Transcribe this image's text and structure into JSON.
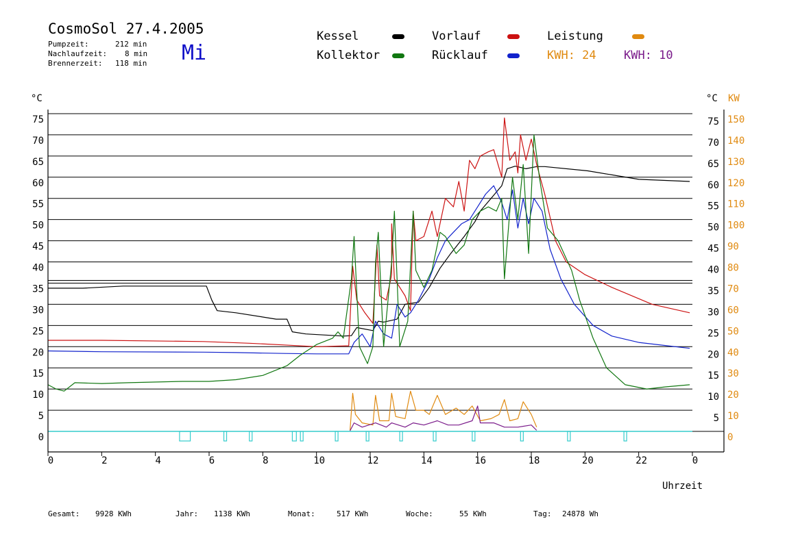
{
  "header": {
    "title": "CosmoSol 27.4.2005",
    "weekday": "Mi",
    "stats": [
      {
        "label": "Pumpzeit:",
        "value": "212 min"
      },
      {
        "label": "Nachlaufzeit:",
        "value": "8 min"
      },
      {
        "label": "Brennerzeit:",
        "value": "118 min"
      }
    ]
  },
  "legend": {
    "kessel": "Kessel",
    "kollektor": "Kollektor",
    "vorlauf": "Vorlauf",
    "ruecklauf": "Rücklauf",
    "leistung": "Leistung",
    "kwh_orange": "KWH: 24",
    "kwh_purple": "KWH: 10"
  },
  "colors": {
    "kessel": "#000000",
    "kollektor": "#117711",
    "vorlauf": "#cc1111",
    "ruecklauf": "#1122cc",
    "leistung": "#e08a10",
    "purple": "#7a1a8a",
    "pump": "#33cccc",
    "day": "#1010c8"
  },
  "footer": [
    {
      "label": "Gesamt:",
      "value": "9928 KWh"
    },
    {
      "label": "Jahr:",
      "value": "1138 KWh"
    },
    {
      "label": "Monat:",
      "value": "517 KWh"
    },
    {
      "label": "Woche:",
      "value": "55 KWh"
    },
    {
      "label": "Tag:",
      "value": "24878 Wh"
    }
  ],
  "chart_data": {
    "type": "line",
    "xlabel": "Uhrzeit",
    "ylabel_left": "°C",
    "ylabel_right_temp": "°C",
    "ylabel_right_power": "KW",
    "xlim": [
      0,
      24
    ],
    "ylim": [
      0,
      75
    ],
    "ylim_power": [
      0,
      150
    ],
    "x_ticks": [
      "0",
      "2",
      "4",
      "6",
      "8",
      "10",
      "12",
      "14",
      "16",
      "18",
      "20",
      "22",
      "0"
    ],
    "y_ticks_left": [
      "0",
      "5",
      "10",
      "15",
      "20",
      "25",
      "30",
      "35",
      "40",
      "45",
      "50",
      "55",
      "60",
      "65",
      "70",
      "75"
    ],
    "y_ticks_right_temp": [
      "5",
      "10",
      "15",
      "20",
      "25",
      "30",
      "35",
      "40",
      "45",
      "50",
      "55",
      "60",
      "65",
      "70",
      "75"
    ],
    "y_ticks_right_power": [
      "0",
      "10",
      "20",
      "30",
      "40",
      "50",
      "60",
      "70",
      "80",
      "90",
      "100",
      "110",
      "120",
      "130",
      "140",
      "150"
    ],
    "grid": true,
    "series": [
      {
        "name": "Kessel",
        "color": "#000000",
        "points": [
          [
            0,
            33.8
          ],
          [
            1.3,
            33.8
          ],
          [
            2.8,
            34.3
          ],
          [
            5.9,
            34.3
          ],
          [
            6.1,
            31
          ],
          [
            6.3,
            28.5
          ],
          [
            7,
            28
          ],
          [
            8.5,
            26.5
          ],
          [
            8.9,
            26.5
          ],
          [
            9.1,
            23.5
          ],
          [
            9.6,
            23
          ],
          [
            11,
            22.5
          ],
          [
            11.3,
            22.6
          ],
          [
            11.5,
            24.5
          ],
          [
            12.1,
            23.8
          ],
          [
            12.3,
            26
          ],
          [
            12.5,
            25.8
          ],
          [
            13,
            26.5
          ],
          [
            13.3,
            30
          ],
          [
            13.8,
            30.5
          ],
          [
            14.2,
            34
          ],
          [
            14.6,
            38.5
          ],
          [
            15,
            42
          ],
          [
            15.5,
            46
          ],
          [
            15.9,
            49.5
          ],
          [
            16.1,
            52
          ],
          [
            16.5,
            55
          ],
          [
            16.9,
            58
          ],
          [
            17.1,
            62
          ],
          [
            17.4,
            62.6
          ],
          [
            17.8,
            62
          ],
          [
            18.2,
            62.5
          ],
          [
            18.5,
            62.5
          ],
          [
            20.1,
            61.5
          ],
          [
            22,
            59.5
          ],
          [
            23.9,
            59
          ]
        ]
      },
      {
        "name": "Vorlauf",
        "color": "#cc1111",
        "points": [
          [
            0,
            21.5
          ],
          [
            2,
            21.5
          ],
          [
            5.8,
            21.2
          ],
          [
            7.5,
            20.8
          ],
          [
            8.8,
            20.4
          ],
          [
            10,
            20
          ],
          [
            11.2,
            20.2
          ],
          [
            11.35,
            39
          ],
          [
            11.5,
            31
          ],
          [
            11.8,
            28
          ],
          [
            12.1,
            25.5
          ],
          [
            12.2,
            37
          ],
          [
            12.25,
            44
          ],
          [
            12.35,
            32
          ],
          [
            12.6,
            31
          ],
          [
            12.8,
            37
          ],
          [
            12.8,
            49
          ],
          [
            12.9,
            36
          ],
          [
            13.3,
            32
          ],
          [
            13.5,
            28.5
          ],
          [
            13.6,
            52
          ],
          [
            13.7,
            45
          ],
          [
            14,
            46
          ],
          [
            14.3,
            52
          ],
          [
            14.5,
            46
          ],
          [
            14.8,
            55
          ],
          [
            15.1,
            53
          ],
          [
            15.3,
            59
          ],
          [
            15.5,
            52
          ],
          [
            15.7,
            64
          ],
          [
            15.9,
            62
          ],
          [
            16.1,
            65
          ],
          [
            16.4,
            66
          ],
          [
            16.6,
            66.5
          ],
          [
            16.9,
            60
          ],
          [
            17,
            74
          ],
          [
            17.2,
            64
          ],
          [
            17.4,
            66
          ],
          [
            17.5,
            61
          ],
          [
            17.6,
            70
          ],
          [
            17.8,
            64
          ],
          [
            18,
            69
          ],
          [
            18.2,
            63
          ],
          [
            18.5,
            56
          ],
          [
            18.9,
            45
          ],
          [
            19.3,
            40
          ],
          [
            20,
            37
          ],
          [
            21,
            34
          ],
          [
            22.5,
            30
          ],
          [
            23.9,
            28
          ]
        ]
      },
      {
        "name": "Rücklauf",
        "color": "#1122cc",
        "points": [
          [
            0,
            19
          ],
          [
            2,
            18.8
          ],
          [
            5.8,
            18.7
          ],
          [
            7,
            18.6
          ],
          [
            8.8,
            18.4
          ],
          [
            10,
            18.3
          ],
          [
            11.2,
            18.3
          ],
          [
            11.4,
            21
          ],
          [
            11.7,
            23
          ],
          [
            12,
            20
          ],
          [
            12.2,
            26
          ],
          [
            12.5,
            23
          ],
          [
            12.8,
            22
          ],
          [
            13,
            30
          ],
          [
            13.3,
            27
          ],
          [
            13.5,
            28
          ],
          [
            13.8,
            31
          ],
          [
            14.2,
            36
          ],
          [
            14.5,
            41
          ],
          [
            14.8,
            45
          ],
          [
            15.1,
            47
          ],
          [
            15.4,
            49
          ],
          [
            15.7,
            50
          ],
          [
            16,
            53
          ],
          [
            16.3,
            56
          ],
          [
            16.6,
            58
          ],
          [
            16.9,
            54
          ],
          [
            17.1,
            50
          ],
          [
            17.3,
            57
          ],
          [
            17.5,
            48
          ],
          [
            17.7,
            55
          ],
          [
            17.9,
            49
          ],
          [
            18.1,
            55
          ],
          [
            18.4,
            52
          ],
          [
            18.7,
            43
          ],
          [
            19.1,
            36
          ],
          [
            19.6,
            30
          ],
          [
            20.3,
            25
          ],
          [
            21,
            22.5
          ],
          [
            22,
            21
          ],
          [
            23.9,
            19.6
          ]
        ]
      },
      {
        "name": "Kollektor",
        "color": "#117711",
        "points": [
          [
            0,
            11
          ],
          [
            0.3,
            10
          ],
          [
            0.6,
            9.5
          ],
          [
            1,
            11.5
          ],
          [
            2,
            11.3
          ],
          [
            3,
            11.5
          ],
          [
            5,
            11.8
          ],
          [
            6,
            11.8
          ],
          [
            7,
            12.2
          ],
          [
            8,
            13.2
          ],
          [
            8.9,
            15.5
          ],
          [
            9.4,
            18
          ],
          [
            10,
            20.5
          ],
          [
            10.6,
            22
          ],
          [
            10.8,
            23.5
          ],
          [
            11,
            22
          ],
          [
            11.3,
            36
          ],
          [
            11.4,
            46
          ],
          [
            11.6,
            20
          ],
          [
            11.9,
            16
          ],
          [
            12.1,
            20
          ],
          [
            12.2,
            40
          ],
          [
            12.3,
            47
          ],
          [
            12.5,
            20
          ],
          [
            12.8,
            40
          ],
          [
            12.9,
            52
          ],
          [
            13.1,
            20
          ],
          [
            13.4,
            26
          ],
          [
            13.6,
            52
          ],
          [
            13.7,
            38
          ],
          [
            14,
            34
          ],
          [
            14.3,
            38
          ],
          [
            14.6,
            47
          ],
          [
            14.8,
            46
          ],
          [
            15.2,
            42
          ],
          [
            15.5,
            44
          ],
          [
            15.8,
            50
          ],
          [
            16.1,
            52
          ],
          [
            16.4,
            53
          ],
          [
            16.7,
            52
          ],
          [
            16.9,
            55
          ],
          [
            17,
            36
          ],
          [
            17.3,
            60
          ],
          [
            17.5,
            50
          ],
          [
            17.7,
            63
          ],
          [
            17.9,
            42
          ],
          [
            18.1,
            70
          ],
          [
            18.3,
            60
          ],
          [
            18.6,
            48
          ],
          [
            19,
            45
          ],
          [
            19.5,
            38
          ],
          [
            19.8,
            31
          ],
          [
            20.3,
            22
          ],
          [
            20.8,
            15
          ],
          [
            21.5,
            11
          ],
          [
            22.3,
            10
          ],
          [
            23,
            10.5
          ],
          [
            23.9,
            11
          ]
        ]
      },
      {
        "name": "Leistung",
        "color": "#e08a10",
        "points": [
          [
            11.25,
            0.5
          ],
          [
            11.35,
            18
          ],
          [
            11.45,
            8
          ],
          [
            11.7,
            4
          ],
          [
            12.1,
            3
          ],
          [
            12.2,
            17
          ],
          [
            12.35,
            5
          ],
          [
            12.7,
            5
          ],
          [
            12.8,
            18
          ],
          [
            12.95,
            7
          ],
          [
            13.3,
            6
          ],
          [
            13.5,
            19
          ],
          [
            13.7,
            10
          ],
          [
            14,
            10
          ],
          [
            14.2,
            8
          ],
          [
            14.5,
            17
          ],
          [
            14.8,
            8
          ],
          [
            15.2,
            11
          ],
          [
            15.5,
            8
          ],
          [
            15.8,
            12
          ],
          [
            16.1,
            5
          ],
          [
            16.5,
            6
          ],
          [
            16.8,
            8
          ],
          [
            17,
            15
          ],
          [
            17.2,
            5
          ],
          [
            17.5,
            6
          ],
          [
            17.7,
            14
          ],
          [
            18,
            8
          ],
          [
            18.2,
            2
          ]
        ]
      },
      {
        "name": "",
        "color": "#7a1a8a",
        "points": [
          [
            11.25,
            0.3
          ],
          [
            11.4,
            4
          ],
          [
            11.7,
            2
          ],
          [
            12.2,
            4
          ],
          [
            12.6,
            2
          ],
          [
            12.8,
            4
          ],
          [
            13.3,
            2
          ],
          [
            13.6,
            4
          ],
          [
            14,
            3
          ],
          [
            14.5,
            5
          ],
          [
            14.9,
            3
          ],
          [
            15.3,
            3
          ],
          [
            15.8,
            5
          ],
          [
            16,
            12
          ],
          [
            16.1,
            4
          ],
          [
            16.6,
            4
          ],
          [
            17,
            2
          ],
          [
            17.5,
            2
          ],
          [
            18,
            3
          ],
          [
            18.2,
            0.5
          ]
        ]
      }
    ],
    "pump_intervals": [
      [
        4.9,
        5.3
      ],
      [
        6.55,
        6.65
      ],
      [
        7.5,
        7.6
      ],
      [
        9.1,
        9.25
      ],
      [
        9.4,
        9.5
      ],
      [
        10.7,
        10.8
      ],
      [
        11.85,
        11.95
      ],
      [
        13.1,
        13.2
      ],
      [
        14.35,
        14.45
      ],
      [
        15.8,
        15.9
      ],
      [
        17.6,
        17.7
      ],
      [
        19.35,
        19.45
      ],
      [
        21.45,
        21.55
      ]
    ]
  }
}
